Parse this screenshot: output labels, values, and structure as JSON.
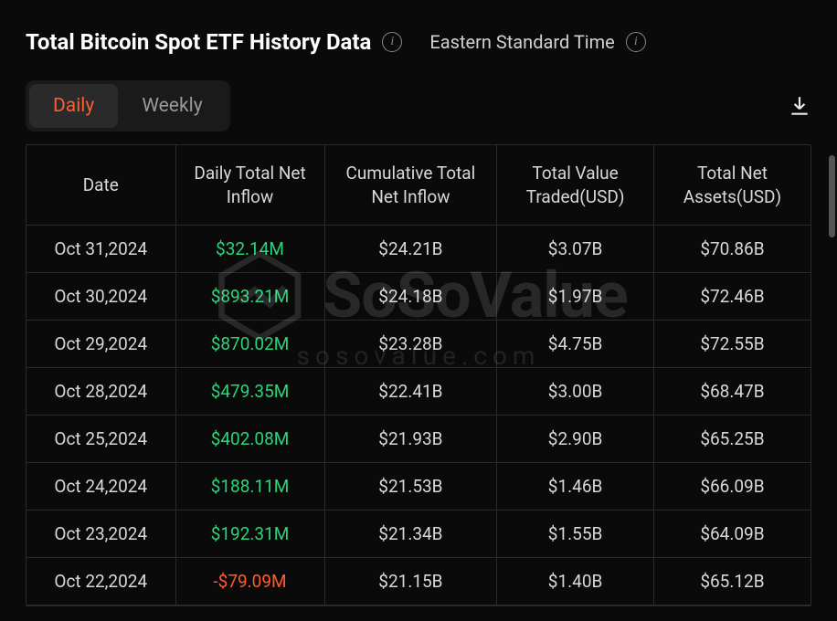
{
  "header": {
    "title": "Total Bitcoin Spot ETF History Data",
    "timezone": "Eastern Standard Time"
  },
  "tabs": {
    "daily": "Daily",
    "weekly": "Weekly",
    "active": "daily"
  },
  "table": {
    "columns": [
      "Date",
      "Daily Total Net Inflow",
      "Cumulative Total Net Inflow",
      "Total Value Traded(USD)",
      "Total Net Assets(USD)"
    ],
    "column_widths": [
      "19%",
      "19%",
      "22%",
      "20%",
      "20%"
    ],
    "rows": [
      {
        "date": "Oct 31,2024",
        "inflow": "$32.14M",
        "inflow_sign": "pos",
        "cum": "$24.21B",
        "traded": "$3.07B",
        "assets": "$70.86B"
      },
      {
        "date": "Oct 30,2024",
        "inflow": "$893.21M",
        "inflow_sign": "pos",
        "cum": "$24.18B",
        "traded": "$1.97B",
        "assets": "$72.46B"
      },
      {
        "date": "Oct 29,2024",
        "inflow": "$870.02M",
        "inflow_sign": "pos",
        "cum": "$23.28B",
        "traded": "$4.75B",
        "assets": "$72.55B"
      },
      {
        "date": "Oct 28,2024",
        "inflow": "$479.35M",
        "inflow_sign": "pos",
        "cum": "$22.41B",
        "traded": "$3.00B",
        "assets": "$68.47B"
      },
      {
        "date": "Oct 25,2024",
        "inflow": "$402.08M",
        "inflow_sign": "pos",
        "cum": "$21.93B",
        "traded": "$2.90B",
        "assets": "$65.25B"
      },
      {
        "date": "Oct 24,2024",
        "inflow": "$188.11M",
        "inflow_sign": "pos",
        "cum": "$21.53B",
        "traded": "$1.46B",
        "assets": "$66.09B"
      },
      {
        "date": "Oct 23,2024",
        "inflow": "$192.31M",
        "inflow_sign": "pos",
        "cum": "$21.34B",
        "traded": "$1.55B",
        "assets": "$64.09B"
      },
      {
        "date": "Oct 22,2024",
        "inflow": "-$79.09M",
        "inflow_sign": "neg",
        "cum": "$21.15B",
        "traded": "$1.40B",
        "assets": "$65.12B"
      }
    ]
  },
  "watermark": {
    "brand": "SoSoValue",
    "domain": "sosovalue.com"
  },
  "colors": {
    "background": "#0a0a0a",
    "text_primary": "#e8e8e8",
    "border": "#2a2a2a",
    "accent": "#ff5b2e",
    "positive": "#2bd47a",
    "negative": "#ff5b2e",
    "tab_bg": "#1a1a1a",
    "tab_active_bg": "#2a2a2a"
  }
}
